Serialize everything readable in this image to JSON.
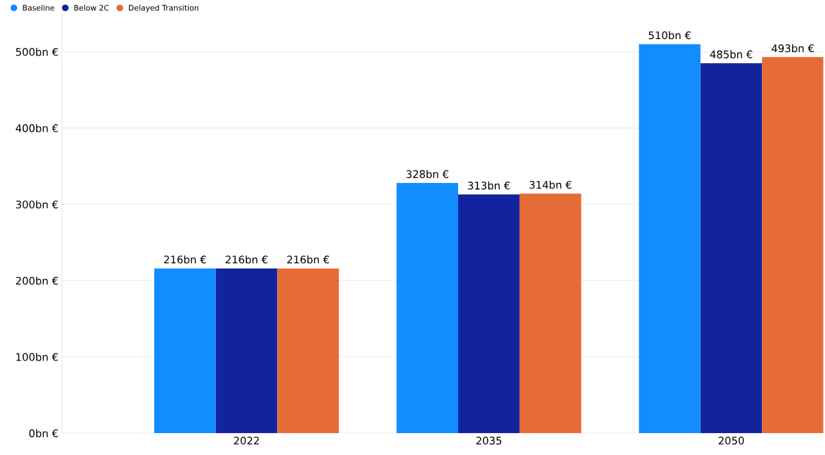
{
  "chart_data": {
    "type": "bar",
    "categories": [
      "2022",
      "2035",
      "2050"
    ],
    "series": [
      {
        "name": "Baseline",
        "color": "#118dff",
        "values": [
          216,
          328,
          510
        ],
        "value_labels": [
          "216bn €",
          "328bn €",
          "510bn €"
        ]
      },
      {
        "name": "Below 2C",
        "color": "#12239e",
        "values": [
          216,
          313,
          485
        ],
        "value_labels": [
          "216bn €",
          "313bn €",
          "485bn €"
        ]
      },
      {
        "name": "Delayed Transition",
        "color": "#e66c37",
        "values": [
          216,
          314,
          493
        ],
        "value_labels": [
          "216bn €",
          "314bn €",
          "493bn €"
        ]
      }
    ],
    "ylim": [
      0,
      550
    ],
    "yticks": [
      {
        "value": 0,
        "label": "0bn €"
      },
      {
        "value": 100,
        "label": "100bn €"
      },
      {
        "value": 200,
        "label": "200bn €"
      },
      {
        "value": 300,
        "label": "300bn €"
      },
      {
        "value": 400,
        "label": "400bn €"
      },
      {
        "value": 500,
        "label": "500bn €"
      }
    ],
    "grid": "y",
    "legend": "top left"
  }
}
